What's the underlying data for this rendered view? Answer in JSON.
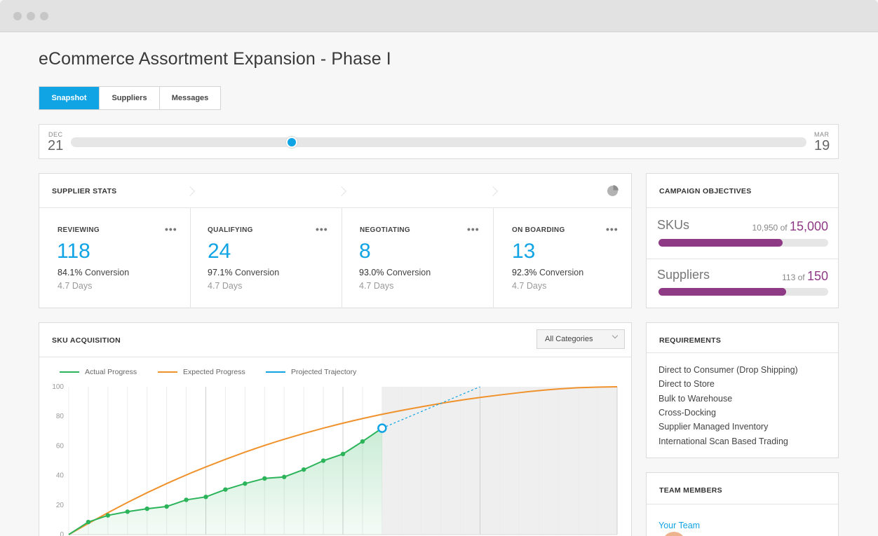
{
  "page": {
    "title": "eCommerce Assortment Expansion - Phase I"
  },
  "tabs": [
    {
      "label": "Snapshot",
      "active": true
    },
    {
      "label": "Suppliers",
      "active": false
    },
    {
      "label": "Messages",
      "active": false
    }
  ],
  "timeline": {
    "start": {
      "month": "DEC",
      "day": "21"
    },
    "end": {
      "month": "MAR",
      "day": "19"
    },
    "position": 0.3
  },
  "supplier_stats": {
    "title": "SUPPLIER STATS",
    "icon": "pie-chart-icon",
    "stages": [
      {
        "label": "REVIEWING",
        "count": "118",
        "conversion_pct": "84.1%",
        "conversion_label": "Conversion",
        "days": "4.7 Days"
      },
      {
        "label": "QUALIFYING",
        "count": "24",
        "conversion_pct": "97.1%",
        "conversion_label": "Conversion",
        "days": "4.7 Days"
      },
      {
        "label": "NEGOTIATING",
        "count": "8",
        "conversion_pct": "93.0%",
        "conversion_label": "Conversion",
        "days": "4.7 Days"
      },
      {
        "label": "ON BOARDING",
        "count": "13",
        "conversion_pct": "92.3%",
        "conversion_label": "Conversion",
        "days": "4.7 Days"
      }
    ],
    "more_label": "•••"
  },
  "campaign": {
    "title": "CAMPAIGN OBJECTIVES",
    "objectives": [
      {
        "name": "SKUs",
        "current": "10,950",
        "of": "of",
        "goal": "15,000",
        "progress": 0.73
      },
      {
        "name": "Suppliers",
        "current": "113",
        "of": "of",
        "goal": "150",
        "progress": 0.753
      }
    ],
    "color": "#8e3a85"
  },
  "sku_acquisition": {
    "title": "SKU ACQUISITION",
    "filter": "All Categories",
    "legend": [
      {
        "name": "Actual Progress",
        "color": "#2bb45a"
      },
      {
        "name": "Expected Progress",
        "color": "#f0922c"
      },
      {
        "name": "Projected Trajectory",
        "color": "#10a4e5"
      }
    ]
  },
  "chart_data": {
    "type": "line",
    "title": "",
    "xlabel": "",
    "ylabel": "",
    "ylim": [
      0,
      100
    ],
    "yticks": [
      "100",
      "80",
      "60",
      "40",
      "20",
      "0"
    ],
    "grid": true,
    "legend_position": "top-left",
    "series": [
      {
        "name": "Actual Progress",
        "x": [
          0,
          1,
          2,
          3,
          4,
          5,
          6,
          7,
          8,
          9,
          10,
          11,
          12,
          13,
          14,
          15,
          16
        ],
        "values": [
          0,
          8.5,
          13,
          15.5,
          17.5,
          19,
          23.5,
          25.5,
          30.5,
          34.5,
          38,
          39,
          44,
          50,
          54.5,
          63,
          72
        ]
      },
      {
        "name": "Expected Progress",
        "x": [
          0,
          2,
          4,
          6,
          8,
          10,
          12,
          14,
          16,
          18,
          20,
          22,
          24,
          26,
          28
        ],
        "values": [
          0,
          15,
          28.5,
          40.5,
          51,
          60.5,
          68.5,
          75.5,
          81.5,
          86.5,
          91,
          94.5,
          97.5,
          99.5,
          100
        ]
      },
      {
        "name": "Projected Trajectory",
        "x": [
          16,
          21
        ],
        "values": [
          72,
          100
        ]
      }
    ]
  },
  "requirements": {
    "title": "REQUIREMENTS",
    "items": [
      "Direct to Consumer (Drop Shipping)",
      "Direct to Store",
      "Bulk to Warehouse",
      "Cross-Docking",
      "Supplier Managed Inventory",
      "International Scan Based Trading"
    ]
  },
  "team": {
    "title": "TEAM MEMBERS",
    "link": "Your Team"
  }
}
